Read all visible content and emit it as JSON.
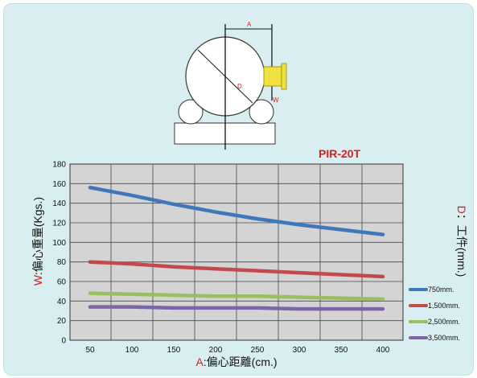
{
  "chart_data": {
    "type": "line",
    "title": "PIR-20T",
    "xlabel": "A:偏心距離(cm.)",
    "ylabel": "W:偏心重量(Kgs.)",
    "right_label": "D：工件(mm.)",
    "x": [
      50,
      100,
      150,
      200,
      250,
      300,
      350,
      400
    ],
    "xlim": [
      50,
      400
    ],
    "ylim": [
      0,
      180
    ],
    "yticks": [
      0,
      20,
      40,
      60,
      80,
      100,
      120,
      140,
      160,
      180
    ],
    "grid": true,
    "legend_position": "right",
    "series": [
      {
        "name": "750mm.",
        "color": "#3e78b8",
        "values": [
          156,
          148,
          139,
          131,
          124,
          118,
          113,
          108
        ]
      },
      {
        "name": "1,500mm.",
        "color": "#c24a4a",
        "values": [
          80,
          78,
          75,
          73,
          71,
          69,
          67,
          65
        ]
      },
      {
        "name": "2,500mm.",
        "color": "#98c060",
        "values": [
          48,
          47,
          46,
          45,
          45,
          44,
          43,
          42
        ]
      },
      {
        "name": "3,500mm.",
        "color": "#7d65a8",
        "values": [
          34,
          34,
          33,
          33,
          33,
          32,
          32,
          32
        ]
      }
    ]
  },
  "diagram": {
    "label_a": "A",
    "label_d": "D",
    "label_w": "W"
  },
  "colors": {
    "title": "#d42020",
    "axis_label": "#d42020",
    "plot_bg": "#d4d4d4",
    "grid": "#4a4a4a",
    "flange": "#f0e040"
  }
}
